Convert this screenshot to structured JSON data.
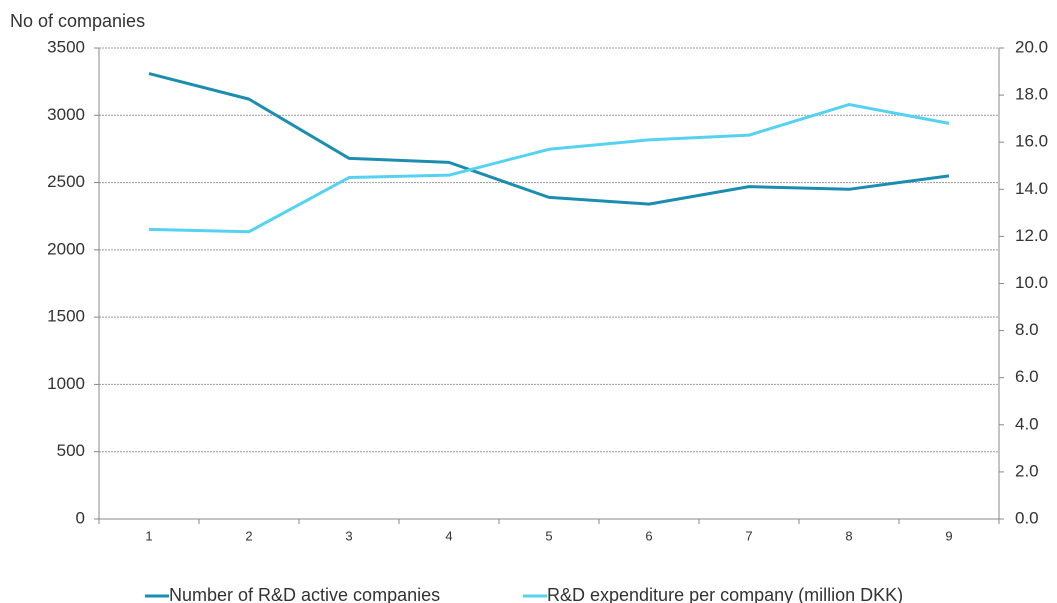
{
  "chart_data": {
    "type": "line",
    "y_label": "No of companies",
    "categories": [
      "1",
      "2",
      "3",
      "4",
      "5",
      "6",
      "7",
      "8",
      "9"
    ],
    "series": [
      {
        "name": "Number of R&D active companies",
        "color": "#1b8db0",
        "values": [
          3310,
          3120,
          2680,
          2650,
          2390,
          2340,
          2470,
          2450,
          2550
        ]
      },
      {
        "name": "R&D expenditure per company (million DKK)",
        "color": "#55d2f2",
        "axis": "y2",
        "values": [
          12.3,
          12.2,
          14.5,
          14.6,
          15.7,
          16.1,
          16.3,
          17.6,
          16.8
        ]
      }
    ],
    "ylim": [
      0,
      3500
    ],
    "yticks": [
      0,
      500,
      1000,
      1500,
      2000,
      2500,
      3000,
      3500
    ],
    "y2lim": [
      0,
      20
    ],
    "y2ticks": [
      {
        "value": 0,
        "label": "0.0"
      },
      {
        "value": 2,
        "label": "2.0"
      },
      {
        "value": 4,
        "label": "4.0"
      },
      {
        "value": 6,
        "label": "6.0"
      },
      {
        "value": 8,
        "label": "8.0"
      },
      {
        "value": 10,
        "label": "10.0"
      },
      {
        "value": 12,
        "label": "12.0"
      },
      {
        "value": 14,
        "label": "14.0"
      },
      {
        "value": 16,
        "label": "16.0"
      },
      {
        "value": 18,
        "label": "18.0"
      },
      {
        "value": 20,
        "label": "20.0"
      }
    ],
    "grid": true,
    "legend": "bottom"
  }
}
